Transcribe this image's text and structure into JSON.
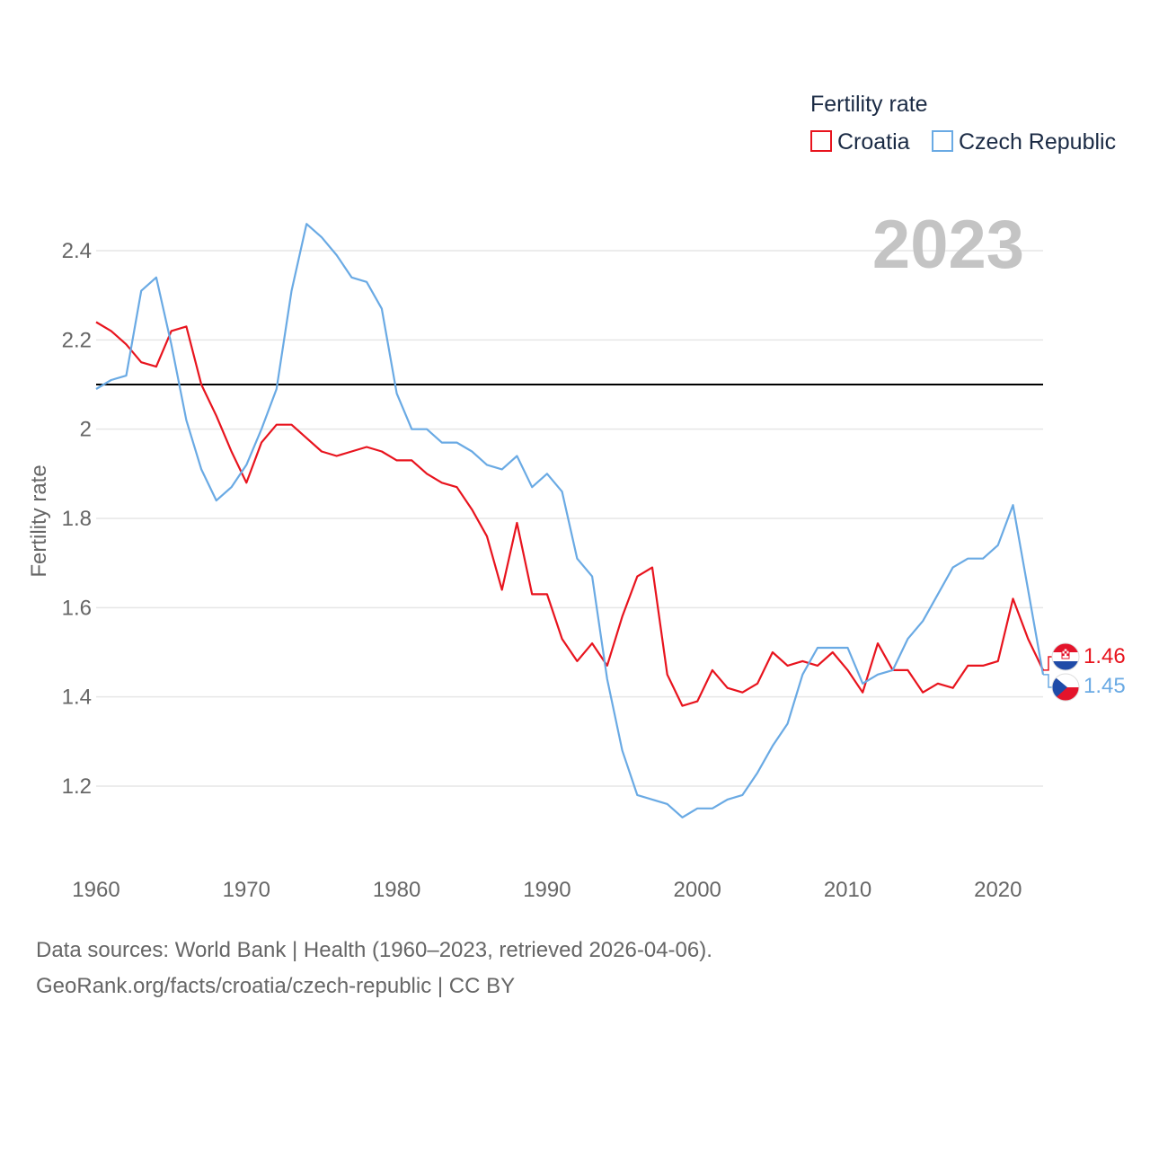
{
  "chart_data": {
    "type": "line",
    "title": "Fertility rate",
    "year_label": "2023",
    "xlabel": "",
    "ylabel": "Fertility rate",
    "xlim": [
      1960,
      2023
    ],
    "ylim": [
      1.1,
      2.5
    ],
    "xticks": [
      1960,
      1970,
      1980,
      1990,
      2000,
      2010,
      2020
    ],
    "yticks": [
      1.2,
      1.4,
      1.6,
      1.8,
      2,
      2.2,
      2.4
    ],
    "reference_line": 2.1,
    "grid": true,
    "legend_position": "top-right",
    "x": [
      1960,
      1961,
      1962,
      1963,
      1964,
      1965,
      1966,
      1967,
      1968,
      1969,
      1970,
      1971,
      1972,
      1973,
      1974,
      1975,
      1976,
      1977,
      1978,
      1979,
      1980,
      1981,
      1982,
      1983,
      1984,
      1985,
      1986,
      1987,
      1988,
      1989,
      1990,
      1991,
      1992,
      1993,
      1994,
      1995,
      1996,
      1997,
      1998,
      1999,
      2000,
      2001,
      2002,
      2003,
      2004,
      2005,
      2006,
      2007,
      2008,
      2009,
      2010,
      2011,
      2012,
      2013,
      2014,
      2015,
      2016,
      2017,
      2018,
      2019,
      2020,
      2021,
      2022,
      2023
    ],
    "series": [
      {
        "name": "Croatia",
        "color": "#e8141e",
        "end_label": "1.46",
        "values": [
          2.24,
          2.22,
          2.19,
          2.15,
          2.14,
          2.22,
          2.23,
          2.1,
          2.03,
          1.95,
          1.88,
          1.97,
          2.01,
          2.01,
          1.98,
          1.95,
          1.94,
          1.95,
          1.96,
          1.95,
          1.93,
          1.93,
          1.9,
          1.88,
          1.87,
          1.82,
          1.76,
          1.64,
          1.79,
          1.63,
          1.63,
          1.53,
          1.48,
          1.52,
          1.47,
          1.58,
          1.67,
          1.69,
          1.45,
          1.38,
          1.39,
          1.46,
          1.42,
          1.41,
          1.43,
          1.5,
          1.47,
          1.48,
          1.47,
          1.5,
          1.46,
          1.41,
          1.52,
          1.46,
          1.46,
          1.41,
          1.43,
          1.42,
          1.47,
          1.47,
          1.48,
          1.62,
          1.53,
          1.46
        ]
      },
      {
        "name": "Czech Republic",
        "color": "#6aaae4",
        "end_label": "1.45",
        "values": [
          2.09,
          2.11,
          2.12,
          2.31,
          2.34,
          2.19,
          2.02,
          1.91,
          1.84,
          1.87,
          1.92,
          2.0,
          2.09,
          2.31,
          2.46,
          2.43,
          2.39,
          2.34,
          2.33,
          2.27,
          2.08,
          2.0,
          2.0,
          1.97,
          1.97,
          1.95,
          1.92,
          1.91,
          1.94,
          1.87,
          1.9,
          1.86,
          1.71,
          1.67,
          1.44,
          1.28,
          1.18,
          1.17,
          1.16,
          1.13,
          1.15,
          1.15,
          1.17,
          1.18,
          1.23,
          1.29,
          1.34,
          1.45,
          1.51,
          1.51,
          1.51,
          1.43,
          1.45,
          1.46,
          1.53,
          1.57,
          1.63,
          1.69,
          1.71,
          1.71,
          1.74,
          1.83,
          1.64,
          1.45
        ]
      }
    ]
  },
  "footer": {
    "line1": "Data sources: World Bank | Health (1960–2023, retrieved 2026-04-06).",
    "line2": "GeoRank.org/facts/croatia/czech-republic | CC BY"
  }
}
